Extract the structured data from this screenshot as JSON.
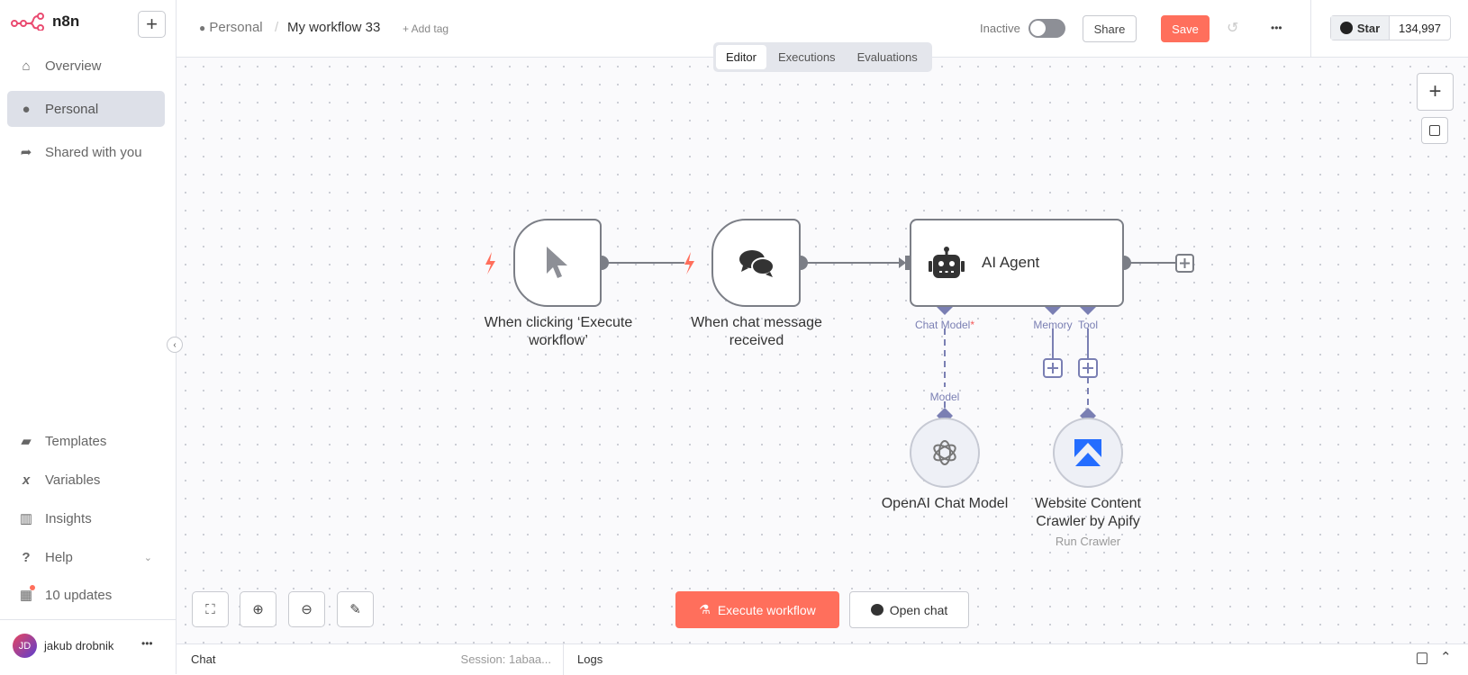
{
  "brand": {
    "name": "n8n",
    "color": "#ea4b71"
  },
  "sidebar": {
    "new_label": "+",
    "top_items": [
      {
        "label": "Overview",
        "icon": "home-icon"
      },
      {
        "label": "Personal",
        "icon": "user-icon",
        "active": true
      },
      {
        "label": "Shared with you",
        "icon": "share-icon"
      }
    ],
    "bottom_items": [
      {
        "label": "Templates",
        "icon": "box-icon"
      },
      {
        "label": "Variables",
        "icon": "variable-icon"
      },
      {
        "label": "Insights",
        "icon": "chart-icon"
      },
      {
        "label": "Help",
        "icon": "question-icon"
      },
      {
        "label": "10 updates",
        "icon": "gift-icon"
      }
    ],
    "user": {
      "initials": "JD",
      "name": "jakub drobnik"
    }
  },
  "header": {
    "breadcrumb_project": "Personal",
    "separator": "/",
    "workflow_name": "My workflow 33",
    "add_tag": "+ Add tag",
    "status_label": "Inactive",
    "active": false,
    "share": "Share",
    "save": "Save",
    "more": "•••",
    "github_star": "Star",
    "github_count": "134,997",
    "tabs": [
      {
        "label": "Editor",
        "active": true
      },
      {
        "label": "Executions"
      },
      {
        "label": "Evaluations"
      }
    ]
  },
  "nodes": {
    "manual_trigger": {
      "label_line1": "When clicking ‘Execute",
      "label_line2": "workflow’"
    },
    "chat_trigger": {
      "label_line1": "When chat message",
      "label_line2": "received"
    },
    "agent": {
      "label": "AI Agent",
      "ports": {
        "chat_model": "Chat Model",
        "required": "*",
        "memory": "Memory",
        "tool": "Tool"
      }
    },
    "openai": {
      "label": "OpenAI Chat Model",
      "port": "Model"
    },
    "apify": {
      "label_line1": "Website Content",
      "label_line2": "Crawler by Apify",
      "subtitle": "Run Crawler"
    }
  },
  "canvas_actions": {
    "execute": "Execute workflow",
    "open_chat": "Open chat"
  },
  "bottom": {
    "chat": "Chat",
    "session": "Session: 1abaa...",
    "logs": "Logs"
  },
  "colors": {
    "accent": "#ff6f5c",
    "port": "#7a7fb3",
    "apify": "#246dff"
  }
}
